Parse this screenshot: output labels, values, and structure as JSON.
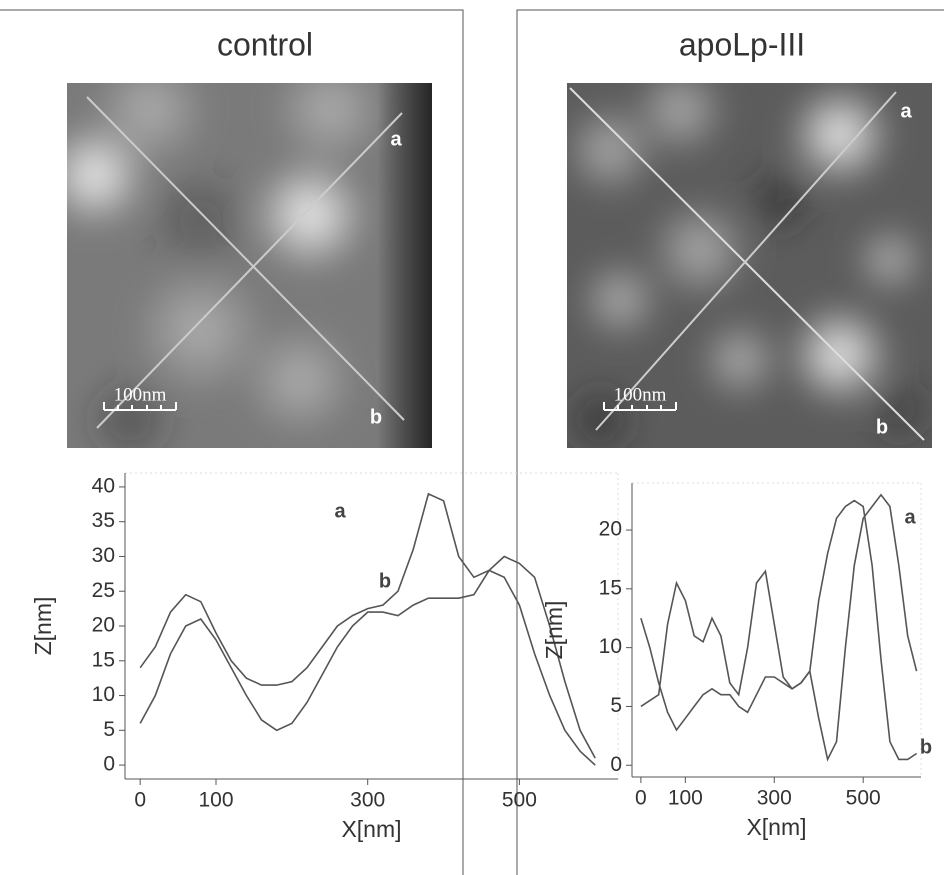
{
  "chart_data": [
    {
      "type": "line",
      "title": "control",
      "xlabel": "X[nm]",
      "ylabel": "Z[nm]",
      "x": [
        0,
        20,
        40,
        60,
        80,
        100,
        120,
        140,
        160,
        180,
        200,
        220,
        240,
        260,
        280,
        300,
        320,
        340,
        360,
        380,
        400,
        420,
        440,
        460,
        480,
        500,
        520,
        540,
        560,
        580,
        600
      ],
      "series": [
        {
          "name": "a",
          "color": "#555555",
          "values": [
            14,
            17,
            22,
            24.5,
            23.5,
            19,
            15,
            12.5,
            11.5,
            11.5,
            12,
            14,
            17,
            20,
            21.5,
            22.5,
            23,
            25,
            31,
            39,
            38,
            30,
            27,
            28,
            27,
            23,
            16,
            10,
            5,
            2,
            0
          ]
        },
        {
          "name": "b",
          "color": "#555555",
          "values": [
            6,
            10,
            16,
            20,
            21,
            18,
            14,
            10,
            6.5,
            5,
            6,
            9,
            13,
            17,
            20,
            22,
            22,
            21.5,
            23,
            24,
            24,
            24,
            24.5,
            28,
            30,
            29,
            27,
            20,
            12,
            5,
            1
          ]
        }
      ],
      "xlim": [
        -20,
        630
      ],
      "ylim": [
        -2,
        42
      ],
      "xticks": [
        0,
        100,
        300,
        500
      ],
      "yticks": [
        0,
        5,
        10,
        15,
        20,
        25,
        30,
        35,
        40
      ]
    },
    {
      "type": "line",
      "title": "apoLp-III",
      "xlabel": "X[nm]",
      "ylabel": "Z[nm]",
      "x": [
        0,
        20,
        40,
        60,
        80,
        100,
        120,
        140,
        160,
        180,
        200,
        220,
        240,
        260,
        280,
        300,
        320,
        340,
        360,
        380,
        400,
        420,
        440,
        460,
        480,
        500,
        520,
        540,
        560,
        580,
        600,
        620
      ],
      "series": [
        {
          "name": "a",
          "color": "#555555",
          "values": [
            5,
            5.5,
            6,
            12,
            15.5,
            14,
            11,
            10.5,
            12.5,
            11,
            7,
            6,
            10,
            15.5,
            16.5,
            12,
            7.5,
            6.5,
            7,
            8,
            4,
            0.5,
            2,
            10,
            17,
            21,
            22,
            23,
            22,
            17,
            11,
            8
          ]
        },
        {
          "name": "b",
          "color": "#555555",
          "values": [
            12.5,
            10,
            7,
            4.5,
            3,
            4,
            5,
            6,
            6.5,
            6,
            6,
            5,
            4.5,
            6,
            7.5,
            7.5,
            7,
            6.5,
            7,
            8,
            14,
            18,
            21,
            22,
            22.5,
            22,
            17,
            9,
            2,
            0.5,
            0.5,
            1
          ]
        }
      ],
      "xlim": [
        -20,
        630
      ],
      "ylim": [
        -1,
        24
      ],
      "xticks": [
        0,
        100,
        300,
        500
      ],
      "yticks": [
        0,
        5,
        10,
        15,
        20
      ]
    }
  ],
  "images": [
    {
      "line_labels": [
        "a",
        "b"
      ],
      "scale_bar": "100nm"
    },
    {
      "line_labels": [
        "a",
        "b"
      ],
      "scale_bar": "100nm"
    }
  ]
}
